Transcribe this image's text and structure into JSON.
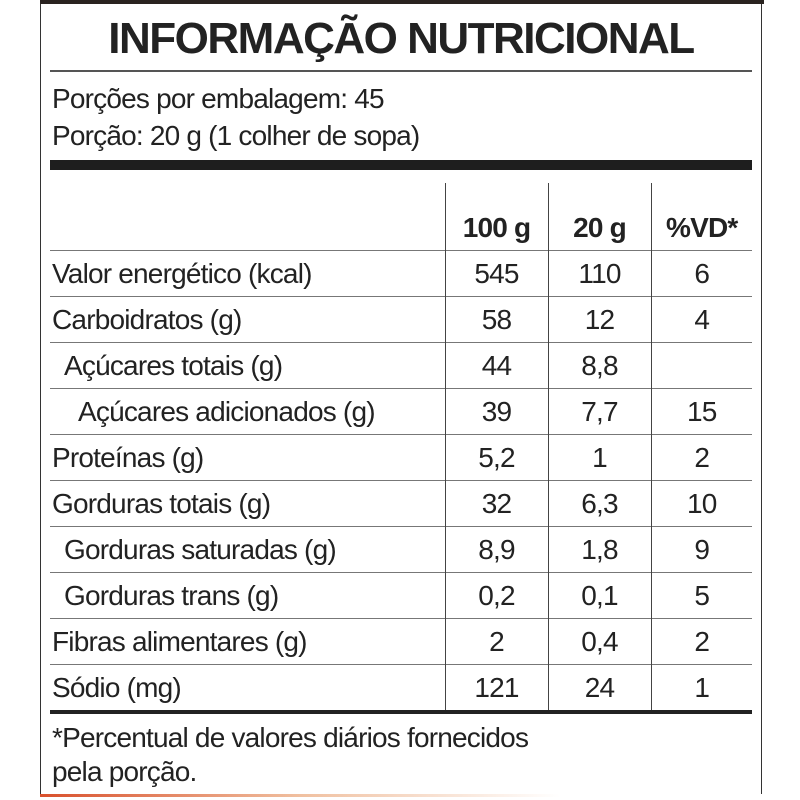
{
  "title": "INFORMAÇÃO NUTRICIONAL",
  "servings_per_package": "Porções por embalagem: 45",
  "serving_size": "Porção: 20 g (1 colher de sopa)",
  "columns": [
    "100 g",
    "20 g",
    "%VD*"
  ],
  "rows": [
    {
      "label": "Valor energético (kcal)",
      "indent": 0,
      "v100": "545",
      "v20": "110",
      "vd": "6"
    },
    {
      "label": "Carboidratos (g)",
      "indent": 0,
      "v100": "58",
      "v20": "12",
      "vd": "4"
    },
    {
      "label": "Açúcares totais (g)",
      "indent": 1,
      "v100": "44",
      "v20": "8,8",
      "vd": ""
    },
    {
      "label": "Açúcares adicionados (g)",
      "indent": 2,
      "v100": "39",
      "v20": "7,7",
      "vd": "15"
    },
    {
      "label": "Proteínas (g)",
      "indent": 0,
      "v100": "5,2",
      "v20": "1",
      "vd": "2"
    },
    {
      "label": "Gorduras totais (g)",
      "indent": 0,
      "v100": "32",
      "v20": "6,3",
      "vd": "10"
    },
    {
      "label": "Gorduras saturadas (g)",
      "indent": 1,
      "v100": "8,9",
      "v20": "1,8",
      "vd": "9"
    },
    {
      "label": "Gorduras trans (g)",
      "indent": 1,
      "v100": "0,2",
      "v20": "0,1",
      "vd": "5"
    },
    {
      "label": "Fibras alimentares (g)",
      "indent": 0,
      "v100": "2",
      "v20": "0,4",
      "vd": "2"
    },
    {
      "label": "Sódio (mg)",
      "indent": 0,
      "v100": "121",
      "v20": "24",
      "vd": "1"
    }
  ],
  "footnote_line1": "*Percentual de valores diários fornecidos",
  "footnote_line2": "pela porção."
}
